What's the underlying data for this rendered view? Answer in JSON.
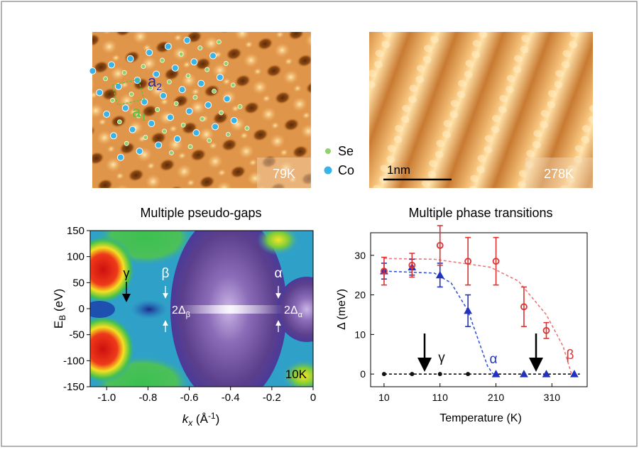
{
  "stm": {
    "left_temp": "79K",
    "right_temp": "278K",
    "scale_bar": "1nm",
    "legend": [
      {
        "name": "Se",
        "color": "#8fd16a"
      },
      {
        "name": "Co",
        "color": "#3ab4e6"
      }
    ],
    "lattice_vectors": [
      {
        "base": "a",
        "sub": "2",
        "color": "#2a2ab0"
      },
      {
        "base": "a",
        "sub": "1",
        "color": "#55c43a"
      }
    ]
  },
  "chart_data": [
    {
      "type": "image",
      "title": "Multiple pseudo-gaps",
      "xlabel": [
        "k",
        "x",
        " (Å",
        "-1",
        ")"
      ],
      "ylabel": [
        "E",
        "B",
        " (eV)"
      ],
      "xlim": [
        -1.08,
        0
      ],
      "xticks": [
        {
          "value": -1,
          "label": "-1.0"
        },
        -0.8,
        -0.6,
        -0.4,
        -0.2,
        0
      ],
      "ylim": [
        -150,
        150
      ],
      "yticks": [
        -150,
        -100,
        -50,
        0,
        50,
        100,
        150
      ],
      "bands": [
        "γ",
        "β",
        "α"
      ],
      "gaps": [
        {
          "base": "2Δ",
          "sub": "β"
        },
        {
          "base": "2Δ",
          "sub": "α"
        }
      ],
      "temperature": "10K"
    },
    {
      "type": "scatter",
      "title": "Multiple phase transitions",
      "xlabel": "Temperature (K)",
      "ylabel": "Δ (meV)",
      "xlim": [
        -14,
        373
      ],
      "xticks": [
        10,
        110,
        210,
        310
      ],
      "ylim": [
        -3.2,
        35.7
      ],
      "yticks": [
        0,
        10,
        20,
        30
      ],
      "series": [
        {
          "name": "γ",
          "color": "#111111",
          "marker": "dot",
          "x": [
            10,
            60,
            110,
            160
          ],
          "values": [
            0,
            0,
            0,
            0
          ]
        },
        {
          "name": "α",
          "color": "#2233bb",
          "marker": "triangle",
          "x": [
            10,
            60,
            110,
            160,
            210,
            260,
            300,
            350
          ],
          "values": [
            26,
            27,
            25,
            16,
            0,
            0,
            0,
            0
          ],
          "errors": [
            2,
            2,
            3,
            4,
            null,
            null,
            null,
            null
          ]
        },
        {
          "name": "β",
          "color": "#dd3333",
          "marker": "circle",
          "x": [
            10,
            60,
            110,
            160,
            210,
            260,
            300
          ],
          "values": [
            26,
            27.5,
            32.5,
            28.5,
            28.5,
            17,
            11
          ],
          "errors": [
            3.5,
            3,
            5,
            6,
            6,
            5,
            2
          ]
        }
      ],
      "fits": [
        {
          "color": "#111111",
          "x": [
            10,
            360
          ],
          "values": [
            0,
            0
          ]
        },
        {
          "color": "#3355dd",
          "x": [
            10,
            100,
            130,
            160,
            180,
            195,
            205
          ],
          "values": [
            26,
            25.5,
            23,
            16,
            8,
            2,
            0
          ]
        },
        {
          "color": "#ee7777",
          "x": [
            10,
            100,
            200,
            250,
            300,
            330,
            345
          ],
          "values": [
            29.2,
            29,
            27,
            23.5,
            15,
            7,
            0
          ]
        }
      ]
    }
  ]
}
